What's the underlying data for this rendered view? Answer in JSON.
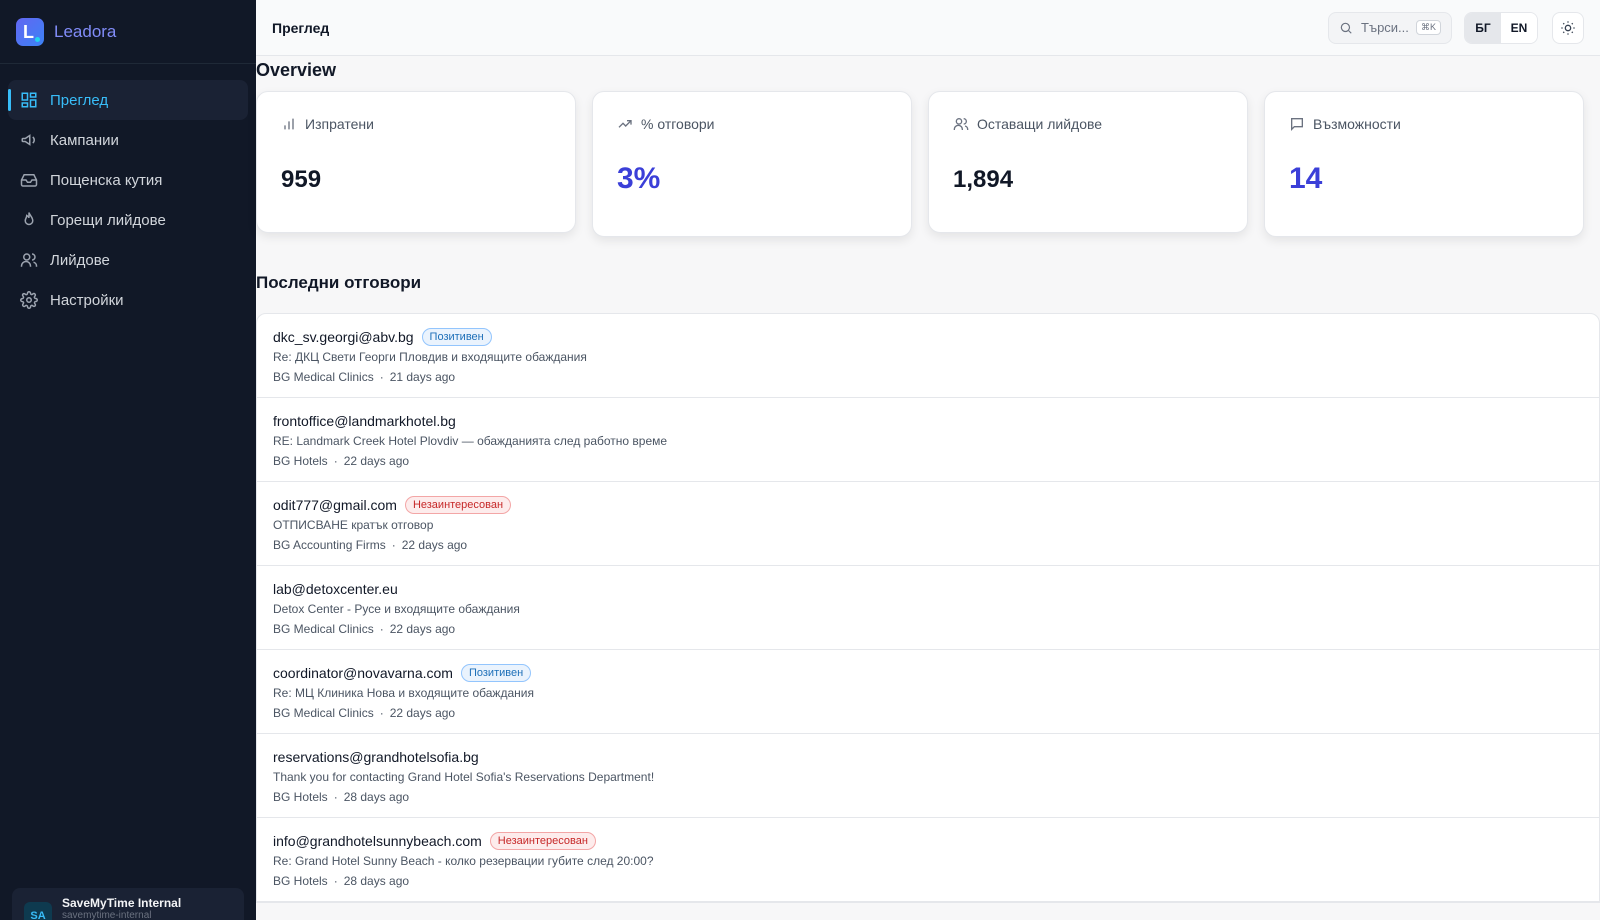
{
  "brand": {
    "name": "Leadora",
    "logo_letter": "L",
    "accent": "#818cf8"
  },
  "sidebar": {
    "items": [
      {
        "label": "Преглед",
        "icon": "dashboard-icon",
        "active": true
      },
      {
        "label": "Кампании",
        "icon": "megaphone-icon",
        "active": false
      },
      {
        "label": "Пощенска кутия",
        "icon": "inbox-icon",
        "active": false
      },
      {
        "label": "Горещи лийдове",
        "icon": "flame-icon",
        "active": false
      },
      {
        "label": "Лийдове",
        "icon": "users-icon",
        "active": false
      },
      {
        "label": "Настройки",
        "icon": "gear-icon",
        "active": false
      }
    ],
    "user": {
      "initials": "SA",
      "name": "SaveMyTime Internal",
      "sub": "savemytime-internal"
    }
  },
  "header": {
    "title": "Преглед",
    "search": {
      "placeholder": "Търси...",
      "shortcut": "⌘K"
    },
    "languages": [
      {
        "label": "БГ",
        "active": true
      },
      {
        "label": "EN",
        "active": false
      }
    ],
    "theme_icon": "sun-icon"
  },
  "main": {
    "heading": "Overview",
    "stats": [
      {
        "label": "Изпратени",
        "value": "959",
        "icon": "bar-chart-icon",
        "accent": false
      },
      {
        "label": "% отговори",
        "value": "3%",
        "icon": "trending-up-icon",
        "accent": true
      },
      {
        "label": "Оставащи лийдове",
        "value": "1,894",
        "icon": "users-icon",
        "accent": false
      },
      {
        "label": "Възможности",
        "value": "14",
        "icon": "message-icon",
        "accent": true
      }
    ],
    "replies_heading": "Последни отговори",
    "replies": [
      {
        "email": "dkc_sv.georgi@abv.bg",
        "badge": "Позитивен",
        "badge_type": "positive",
        "subject": "Re: ДКЦ Свети Георги Пловдив и входящите обаждания",
        "segment": "BG Medical Clinics",
        "time": "21 days ago"
      },
      {
        "email": "frontoffice@landmarkhotel.bg",
        "badge": "",
        "badge_type": "none",
        "subject": "RE: Landmark Creek Hotel Plovdiv — обажданията след работно време",
        "segment": "BG Hotels",
        "time": "22 days ago"
      },
      {
        "email": "odit777@gmail.com",
        "badge": "Незаинтересован",
        "badge_type": "negative",
        "subject": "ОТПИСВАНЕ кратък отговор",
        "segment": "BG Accounting Firms",
        "time": "22 days ago"
      },
      {
        "email": "lab@detoxcenter.eu",
        "badge": "",
        "badge_type": "none",
        "subject": "Detox Center - Русе и входящите обаждания",
        "segment": "BG Medical Clinics",
        "time": "22 days ago"
      },
      {
        "email": "coordinator@novavarna.com",
        "badge": "Позитивен",
        "badge_type": "positive",
        "subject": "Re: МЦ Клиника Нова и входящите обаждания",
        "segment": "BG Medical Clinics",
        "time": "22 days ago"
      },
      {
        "email": "reservations@grandhotelsofia.bg",
        "badge": "",
        "badge_type": "none",
        "subject": "Thank you for contacting Grand Hotel Sofia's Reservations Department!",
        "segment": "BG Hotels",
        "time": "28 days ago"
      },
      {
        "email": "info@grandhotelsunnybeach.com",
        "badge": "Незаинтересован",
        "badge_type": "negative",
        "subject": "Re: Grand Hotel Sunny Beach - колко резервации губите след 20:00?",
        "segment": "BG Hotels",
        "time": "28 days ago"
      }
    ]
  },
  "colors": {
    "sidebar_bg": "#111827",
    "active": "#38bdf8",
    "stat_accent": "#3b3fd8",
    "positive": "#1d6fb8",
    "negative": "#c62828"
  }
}
